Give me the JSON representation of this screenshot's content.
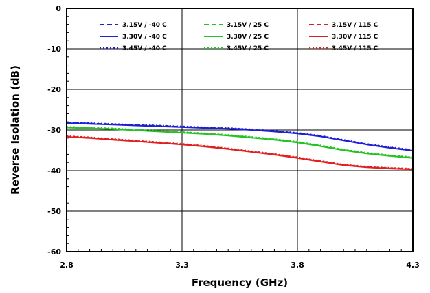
{
  "chart_data": {
    "type": "line",
    "title": "",
    "xlabel": "Frequency (GHz)",
    "ylabel": "Reverse Isolation (dB)",
    "xlim": [
      2.8,
      4.3
    ],
    "ylim": [
      -60,
      0
    ],
    "x_ticks": [
      "2.8",
      "3.3",
      "3.8",
      "4.3"
    ],
    "y_ticks": [
      "0",
      "-10",
      "-20",
      "-30",
      "-40",
      "-50",
      "-60"
    ],
    "grid": true,
    "legend_position": "top",
    "x": [
      2.8,
      2.9,
      3.0,
      3.1,
      3.2,
      3.3,
      3.4,
      3.5,
      3.6,
      3.7,
      3.8,
      3.9,
      4.0,
      4.1,
      4.2,
      4.3
    ],
    "series": [
      {
        "name": "3.15V / -40 C",
        "color": "#1f1fd6",
        "dash": "dashed",
        "values": [
          -28.2,
          -28.4,
          -28.6,
          -28.8,
          -29.0,
          -29.2,
          -29.4,
          -29.6,
          -29.9,
          -30.3,
          -30.8,
          -31.5,
          -32.5,
          -33.5,
          -34.3,
          -35.0
        ]
      },
      {
        "name": "3.30V / -40 C",
        "color": "#1f1fd6",
        "dash": "solid",
        "values": [
          -28.3,
          -28.5,
          -28.7,
          -28.9,
          -29.1,
          -29.3,
          -29.5,
          -29.7,
          -30.0,
          -30.4,
          -30.9,
          -31.6,
          -32.6,
          -33.6,
          -34.4,
          -35.1
        ]
      },
      {
        "name": "3.45V / -40 C",
        "color": "#1f1fd6",
        "dash": "dotted",
        "values": [
          -28.1,
          -28.3,
          -28.5,
          -28.7,
          -28.9,
          -29.1,
          -29.3,
          -29.5,
          -29.8,
          -30.2,
          -30.7,
          -31.4,
          -32.4,
          -33.4,
          -34.2,
          -34.9
        ]
      },
      {
        "name": "3.15V / 25 C",
        "color": "#22c322",
        "dash": "dashed",
        "values": [
          -29.3,
          -29.5,
          -29.7,
          -30.0,
          -30.3,
          -30.6,
          -30.9,
          -31.3,
          -31.8,
          -32.3,
          -33.0,
          -33.9,
          -34.9,
          -35.7,
          -36.3,
          -36.8
        ]
      },
      {
        "name": "3.30V / 25 C",
        "color": "#22c322",
        "dash": "solid",
        "values": [
          -29.4,
          -29.6,
          -29.8,
          -30.1,
          -30.4,
          -30.7,
          -31.0,
          -31.4,
          -31.9,
          -32.4,
          -33.1,
          -34.0,
          -35.0,
          -35.8,
          -36.4,
          -36.9
        ]
      },
      {
        "name": "3.45V / 25 C",
        "color": "#22c322",
        "dash": "dotted",
        "values": [
          -29.2,
          -29.4,
          -29.6,
          -29.9,
          -30.2,
          -30.5,
          -30.8,
          -31.2,
          -31.7,
          -32.2,
          -32.9,
          -33.8,
          -34.8,
          -35.6,
          -36.2,
          -36.7
        ]
      },
      {
        "name": "3.15V / 115 C",
        "color": "#e02020",
        "dash": "dashed",
        "values": [
          -31.6,
          -31.9,
          -32.3,
          -32.7,
          -33.1,
          -33.5,
          -34.0,
          -34.6,
          -35.3,
          -36.0,
          -36.8,
          -37.7,
          -38.6,
          -39.1,
          -39.4,
          -39.6
        ]
      },
      {
        "name": "3.30V / 115 C",
        "color": "#e02020",
        "dash": "solid",
        "values": [
          -31.7,
          -32.0,
          -32.4,
          -32.8,
          -33.2,
          -33.6,
          -34.1,
          -34.7,
          -35.4,
          -36.1,
          -36.9,
          -37.8,
          -38.7,
          -39.2,
          -39.5,
          -39.7
        ]
      },
      {
        "name": "3.45V / 115 C",
        "color": "#e02020",
        "dash": "dotted",
        "values": [
          -31.5,
          -31.8,
          -32.2,
          -32.6,
          -33.0,
          -33.4,
          -33.9,
          -34.5,
          -35.2,
          -35.9,
          -36.7,
          -37.6,
          -38.5,
          -39.0,
          -39.3,
          -39.5
        ]
      }
    ]
  }
}
